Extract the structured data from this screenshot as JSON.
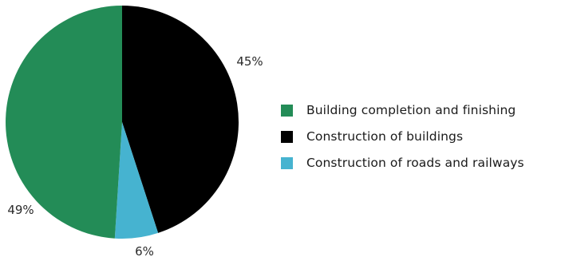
{
  "chart_data": {
    "type": "pie",
    "title": "",
    "start_angle_deg": 0,
    "direction": "clockwise",
    "slices": [
      {
        "label": "Construction of buildings",
        "value": 45,
        "display": "45%",
        "color": "#000000"
      },
      {
        "label": "Construction of roads and railways",
        "value": 6,
        "display": "6%",
        "color": "#46b3d0"
      },
      {
        "label": "Building completion and finishing",
        "value": 49,
        "display": "49%",
        "color": "#238c57"
      }
    ],
    "legend": {
      "placement": "right",
      "entries": [
        {
          "label": "Building completion and finishing",
          "color": "#238c57"
        },
        {
          "label": "Construction of buildings",
          "color": "#000000"
        },
        {
          "label": "Construction of roads and railways",
          "color": "#46b3d0"
        }
      ]
    }
  }
}
